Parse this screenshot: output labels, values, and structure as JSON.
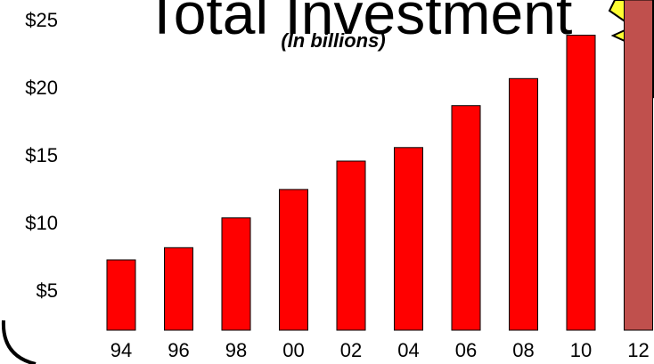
{
  "chart_data": {
    "type": "bar",
    "title": "Total Investment",
    "subtitle": "(In billions)",
    "categories": [
      "94",
      "96",
      "98",
      "00",
      "02",
      "04",
      "06",
      "08",
      "10",
      "12"
    ],
    "values": [
      5.2,
      6.1,
      8.3,
      10.4,
      12.5,
      13.5,
      16.6,
      18.6,
      21.8,
      27
    ],
    "y_ticks": [
      "$5",
      "$10",
      "$15",
      "$20",
      "$25"
    ],
    "y_tick_values": [
      5,
      10,
      15,
      20,
      25
    ],
    "ylim": [
      2.5,
      25
    ],
    "grid": false,
    "colors": {
      "bar": "#ff0000",
      "highlight_bar": "#c0504d",
      "star": "#ffff33",
      "outline": "#000000"
    },
    "highlighted_category": "12"
  }
}
